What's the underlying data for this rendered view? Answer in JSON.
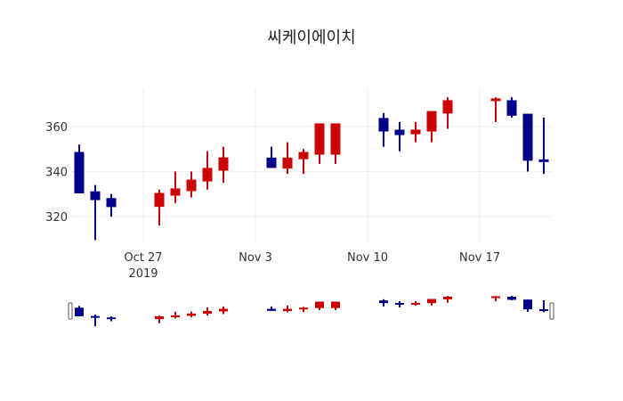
{
  "title": "씨케이에이치",
  "colors": {
    "increasing": "#cc0000",
    "decreasing": "#00008b",
    "grid": "#eeeeee",
    "text": "#333333"
  },
  "chart_data": {
    "type": "candlestick",
    "title": "씨케이에이치",
    "xlabel": "",
    "ylabel": "",
    "ylim": [
      306,
      377
    ],
    "yticks": [
      320,
      340,
      360
    ],
    "xticks": [
      {
        "label": "Oct 27",
        "sublabel": "2019",
        "date": "2019-10-27"
      },
      {
        "label": "Nov 3",
        "date": "2019-11-03"
      },
      {
        "label": "Nov 10",
        "date": "2019-11-10"
      },
      {
        "label": "Nov 17",
        "date": "2019-11-17"
      }
    ],
    "grid": true,
    "rangeslider": true,
    "x": [
      "2019-10-23",
      "2019-10-24",
      "2019-10-25",
      "2019-10-28",
      "2019-10-29",
      "2019-10-30",
      "2019-10-31",
      "2019-11-01",
      "2019-11-04",
      "2019-11-05",
      "2019-11-06",
      "2019-11-07",
      "2019-11-08",
      "2019-11-11",
      "2019-11-12",
      "2019-11-13",
      "2019-11-14",
      "2019-11-15",
      "2019-11-18",
      "2019-11-19",
      "2019-11-20",
      "2019-11-21"
    ],
    "open": [
      348.5,
      331.0,
      328.0,
      324.5,
      329.5,
      331.5,
      335.8,
      340.6,
      346.0,
      341.5,
      345.7,
      347.7,
      347.7,
      363.6,
      358.4,
      356.8,
      358.0,
      366.0,
      371.5,
      371.5,
      365.5,
      345.2
    ],
    "high": [
      352.0,
      334.0,
      330.0,
      332.0,
      340.0,
      340.0,
      349.0,
      351.0,
      351.0,
      353.0,
      350.0,
      361.2,
      361.2,
      366.0,
      362.0,
      362.0,
      366.7,
      373.0,
      373.0,
      373.0,
      365.5,
      364.0
    ],
    "low": [
      330.5,
      309.5,
      320.0,
      316.0,
      326.0,
      328.5,
      332.0,
      335.0,
      341.8,
      339.0,
      339.0,
      343.4,
      343.4,
      351.0,
      349.0,
      353.0,
      353.0,
      359.0,
      362.0,
      364.0,
      340.0,
      339.0
    ],
    "close": [
      330.5,
      327.5,
      324.4,
      330.3,
      332.3,
      336.2,
      341.4,
      346.1,
      341.8,
      346.0,
      348.5,
      361.2,
      361.2,
      358.0,
      356.4,
      358.4,
      366.7,
      371.5,
      372.3,
      365.0,
      345.0,
      344.8
    ]
  }
}
